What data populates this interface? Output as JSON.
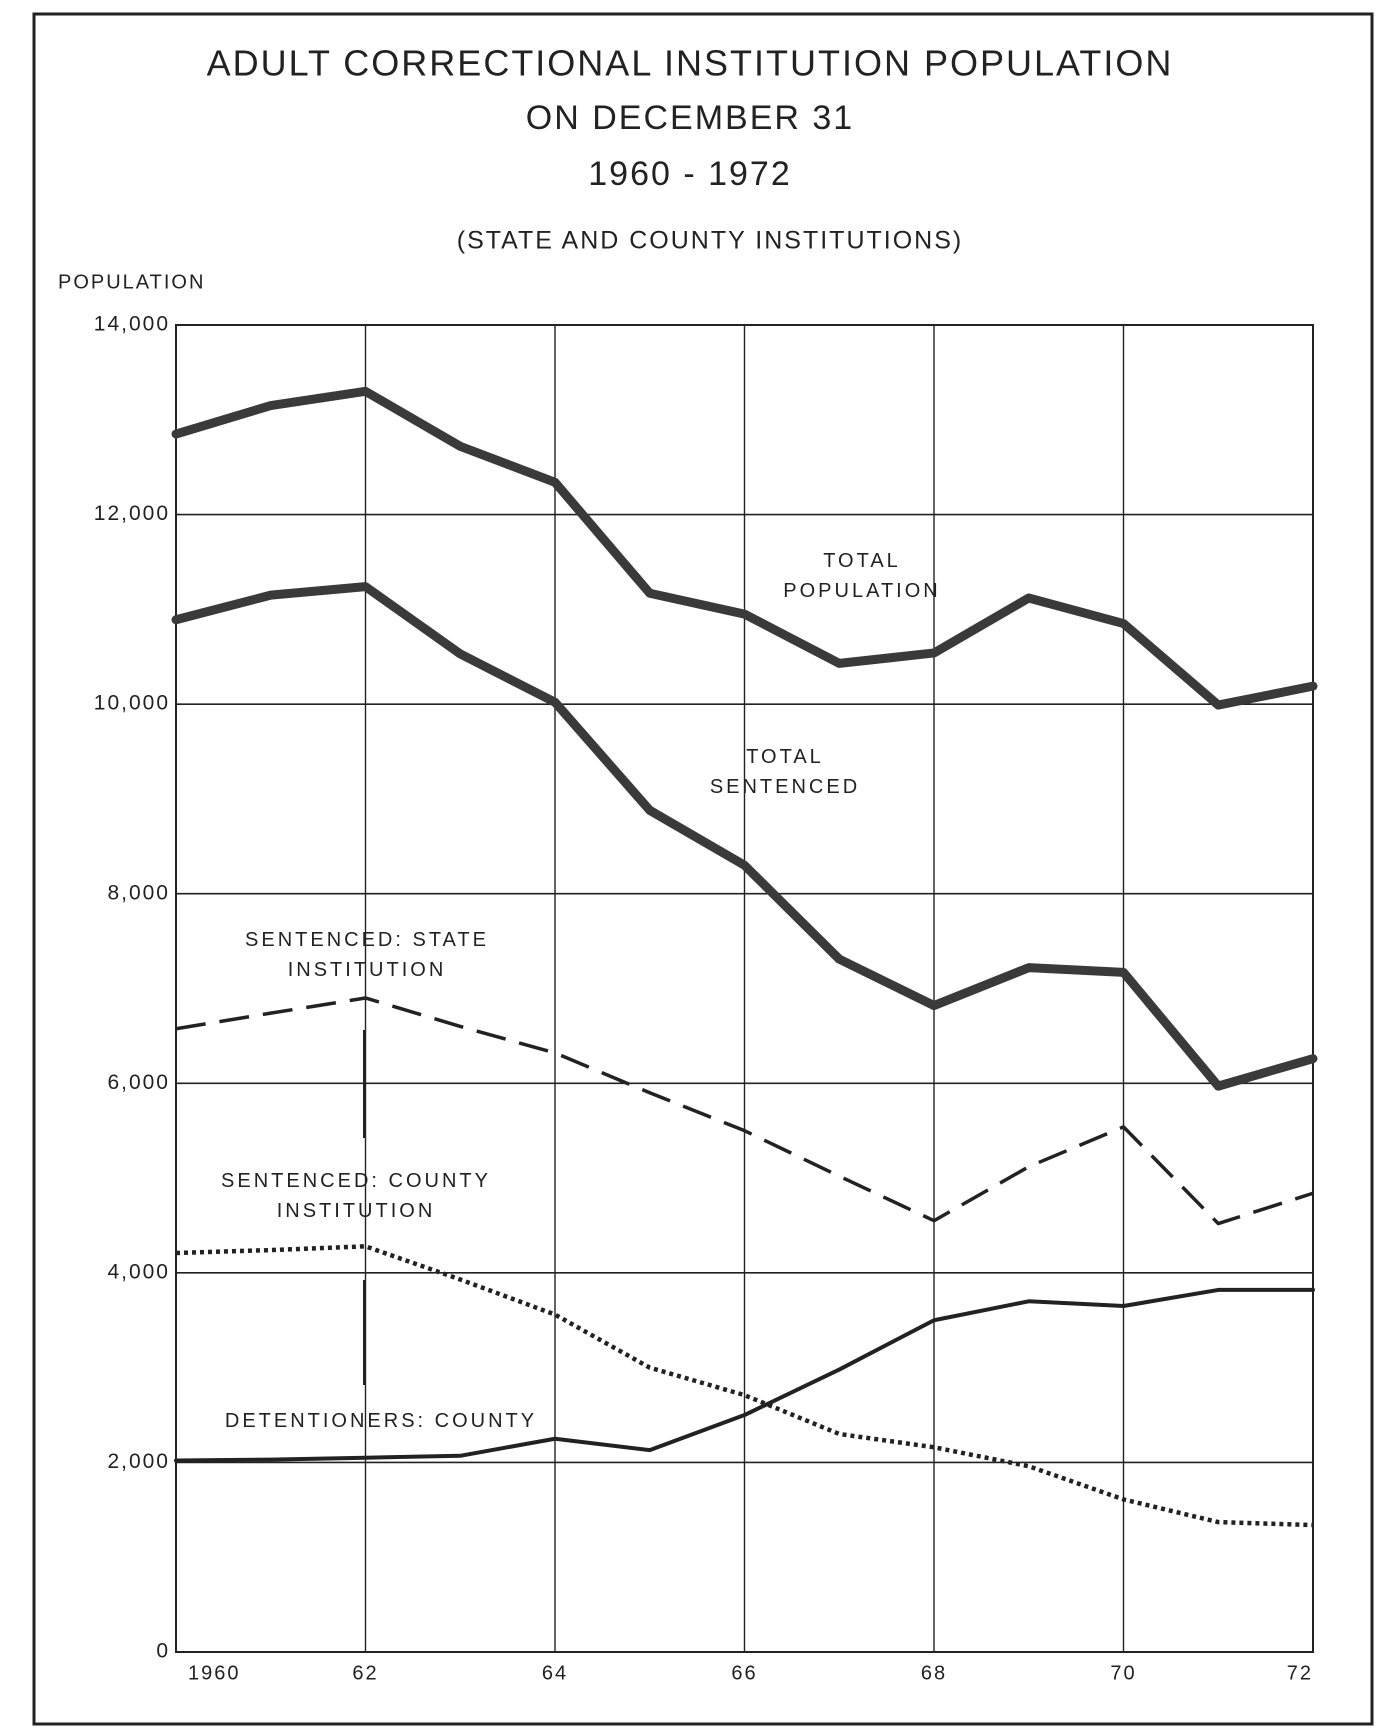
{
  "chart_data": {
    "type": "line",
    "title": [
      "ADULT CORRECTIONAL INSTITUTION POPULATION",
      "ON DECEMBER 31",
      "1960 - 1972"
    ],
    "subtitle": "(STATE AND COUNTY INSTITUTIONS)",
    "y_label": "POPULATION",
    "x": [
      1960,
      1961,
      1962,
      1963,
      1964,
      1965,
      1966,
      1967,
      1968,
      1969,
      1970,
      1971,
      1972
    ],
    "xlim": [
      1960,
      1972
    ],
    "xticks": [
      1960,
      {
        "value": 1962,
        "label": "62"
      },
      {
        "value": 1964,
        "label": "64"
      },
      {
        "value": 1966,
        "label": "66"
      },
      {
        "value": 1968,
        "label": "68"
      },
      {
        "value": 1970,
        "label": "70"
      },
      {
        "value": 1972,
        "label": "72"
      }
    ],
    "ylim": [
      0,
      14000
    ],
    "yticks": [
      0,
      {
        "value": 2000,
        "label": "2,000"
      },
      {
        "value": 4000,
        "label": "4,000"
      },
      {
        "value": 6000,
        "label": "6,000"
      },
      {
        "value": 8000,
        "label": "8,000"
      },
      {
        "value": 10000,
        "label": "10,000"
      },
      {
        "value": 12000,
        "label": "12,000"
      },
      {
        "value": 14000,
        "label": "14,000"
      }
    ],
    "grid": true,
    "series": [
      {
        "name": "TOTAL POPULATION",
        "color": "#3a3a3a",
        "line_style": "heavy",
        "values": [
          12850,
          13150,
          13300,
          12720,
          12340,
          11170,
          10950,
          10430,
          10540,
          11120,
          10850,
          9990,
          10190
        ]
      },
      {
        "name": "TOTAL SENTENCED",
        "color": "#3a3a3a",
        "line_style": "heavy",
        "values": [
          10890,
          11150,
          11240,
          10530,
          10020,
          8880,
          8300,
          7310,
          6820,
          7220,
          7170,
          5970,
          6260
        ]
      },
      {
        "name": "SENTENCED: STATE INSTITUTION",
        "color": "#222222",
        "line_style": "dashed",
        "values": [
          6575,
          6740,
          6900,
          6600,
          6320,
          5900,
          5500,
          5020,
          4550,
          5120,
          5540,
          4520,
          4840
        ]
      },
      {
        "name": "SENTENCED: COUNTY INSTITUTION",
        "color": "#222222",
        "line_style": "dotted",
        "values": [
          4210,
          4240,
          4280,
          3930,
          3560,
          3000,
          2710,
          2300,
          2160,
          1960,
          1610,
          1370,
          1340
        ]
      },
      {
        "name": "DETENTIONERS: COUNTY",
        "color": "#222222",
        "line_style": "solid",
        "values": [
          2020,
          2030,
          2050,
          2070,
          2250,
          2130,
          2500,
          2980,
          3500,
          3700,
          3650,
          3820,
          3820
        ]
      }
    ]
  }
}
